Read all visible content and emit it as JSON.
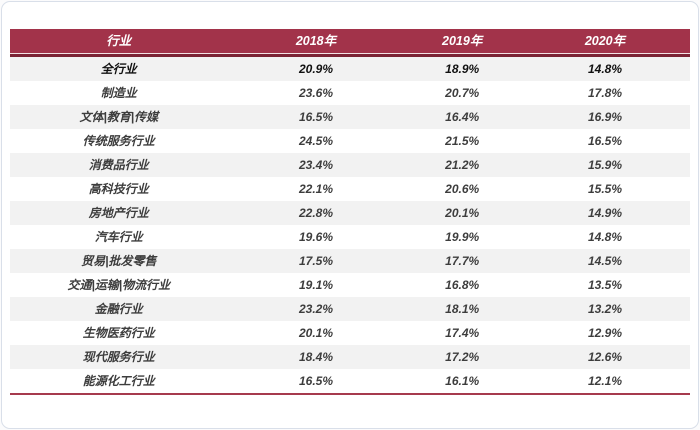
{
  "colors": {
    "header_bg": "#a2334a",
    "header_text": "#ffffff",
    "header_divider_dark": "#7b2334",
    "bottom_line": "#a63a4e",
    "row_alt_bg": "#f2f2f2",
    "row_text": "#3d3d3d",
    "emphasis_text": "#111111"
  },
  "chart_data": {
    "type": "table",
    "columns": [
      "行业",
      "2018年",
      "2019年",
      "2020年"
    ],
    "rows": [
      {
        "label": "全行业",
        "values": [
          "20.9%",
          "18.9%",
          "14.8%"
        ],
        "emphasis": true
      },
      {
        "label": "制造业",
        "values": [
          "23.6%",
          "20.7%",
          "17.8%"
        ],
        "emphasis": false
      },
      {
        "label": "文体|教育|传媒",
        "values": [
          "16.5%",
          "16.4%",
          "16.9%"
        ],
        "emphasis": false
      },
      {
        "label": "传统服务行业",
        "values": [
          "24.5%",
          "21.5%",
          "16.5%"
        ],
        "emphasis": false
      },
      {
        "label": "消费品行业",
        "values": [
          "23.4%",
          "21.2%",
          "15.9%"
        ],
        "emphasis": false
      },
      {
        "label": "高科技行业",
        "values": [
          "22.1%",
          "20.6%",
          "15.5%"
        ],
        "emphasis": false
      },
      {
        "label": "房地产行业",
        "values": [
          "22.8%",
          "20.1%",
          "14.9%"
        ],
        "emphasis": false
      },
      {
        "label": "汽车行业",
        "values": [
          "19.6%",
          "19.9%",
          "14.8%"
        ],
        "emphasis": false
      },
      {
        "label": "贸易|批发零售",
        "values": [
          "17.5%",
          "17.7%",
          "14.5%"
        ],
        "emphasis": false
      },
      {
        "label": "交通|运输|物流行业",
        "values": [
          "19.1%",
          "16.8%",
          "13.5%"
        ],
        "emphasis": false
      },
      {
        "label": "金融行业",
        "values": [
          "23.2%",
          "18.1%",
          "13.2%"
        ],
        "emphasis": false
      },
      {
        "label": "生物医药行业",
        "values": [
          "20.1%",
          "17.4%",
          "12.9%"
        ],
        "emphasis": false
      },
      {
        "label": "现代服务行业",
        "values": [
          "18.4%",
          "17.2%",
          "12.6%"
        ],
        "emphasis": false
      },
      {
        "label": "能源化工行业",
        "values": [
          "16.5%",
          "16.1%",
          "12.1%"
        ],
        "emphasis": false
      }
    ]
  }
}
